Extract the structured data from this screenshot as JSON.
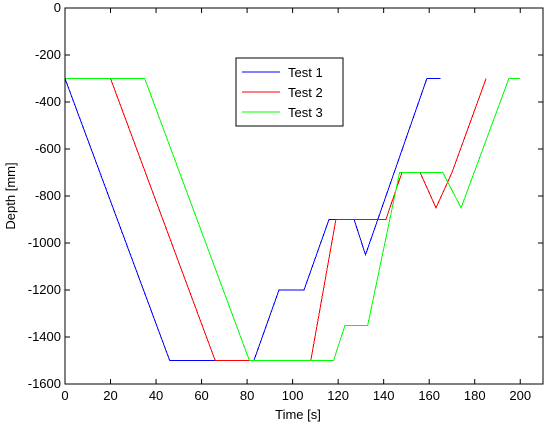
{
  "chart_data": {
    "type": "line",
    "xlabel": "Time [s]",
    "ylabel": "Depth [mm]",
    "xlim": [
      0,
      210
    ],
    "ylim": [
      -1600,
      0
    ],
    "x_ticks": [
      0,
      20,
      40,
      60,
      80,
      100,
      120,
      140,
      160,
      180,
      200
    ],
    "y_ticks": [
      0,
      -200,
      -400,
      -600,
      -800,
      -1000,
      -1200,
      -1400,
      -1600
    ],
    "grid": false,
    "legend_position": "top-center",
    "series": [
      {
        "name": "Test 1",
        "color": "#0000ff",
        "x": [
          0,
          46,
          83,
          94,
          105,
          116,
          127,
          132,
          159,
          165
        ],
        "y": [
          -300,
          -1500,
          -1500,
          -1200,
          -1200,
          -900,
          -900,
          -1050,
          -300,
          -300
        ]
      },
      {
        "name": "Test 2",
        "color": "#ff0000",
        "x": [
          20,
          66,
          108,
          119,
          130,
          141,
          148,
          156,
          163,
          170,
          185
        ],
        "y": [
          -300,
          -1500,
          -1500,
          -900,
          -900,
          -900,
          -700,
          -700,
          -850,
          -700,
          -300
        ]
      },
      {
        "name": "Test 3",
        "color": "#00ff00",
        "x": [
          0,
          35,
          81,
          118,
          123,
          133,
          147,
          166,
          174,
          195,
          200
        ],
        "y": [
          -300,
          -300,
          -1500,
          -1500,
          -1350,
          -1350,
          -700,
          -700,
          -850,
          -300,
          -300
        ]
      }
    ]
  }
}
